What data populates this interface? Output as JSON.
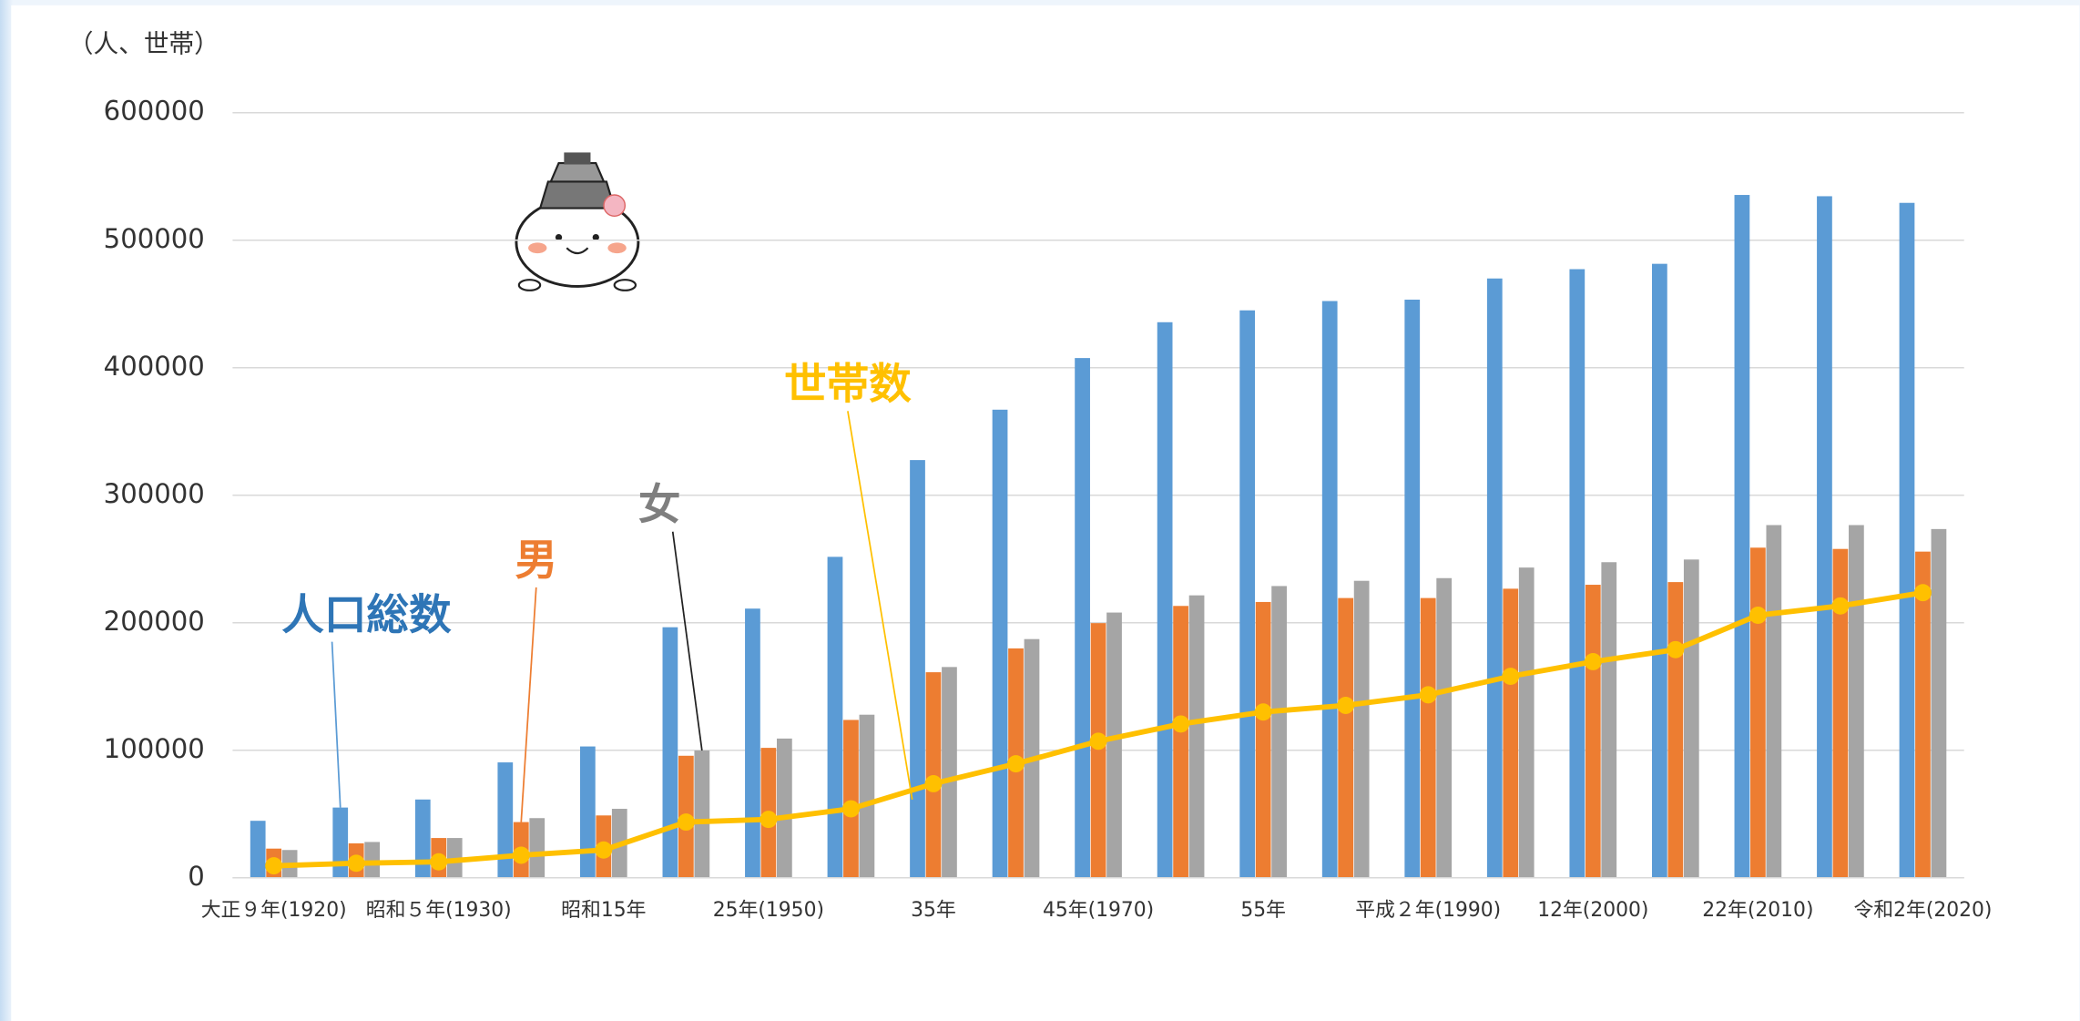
{
  "chart_data": {
    "type": "bar",
    "y_label": "（人、世帯）",
    "categories": [
      "大正９年(1920)",
      null,
      "昭和５年(1930)",
      null,
      "昭和15年",
      null,
      "25年(1950)",
      null,
      "35年",
      null,
      "45年(1970)",
      null,
      "55年",
      null,
      "平成２年(1990)",
      null,
      "12年(2000)",
      null,
      "22年(2010)",
      null,
      "令和2年(2020)"
    ],
    "series": [
      {
        "name": "人口総数",
        "type": "bar",
        "color": "#5b9bd5",
        "values": [
          44700,
          55100,
          61400,
          90500,
          103000,
          196500,
          211100,
          251700,
          327600,
          367100,
          407600,
          435700,
          445000,
          452300,
          453400,
          470000,
          477300,
          481500,
          535500,
          534500,
          529300
        ]
      },
      {
        "name": "男",
        "type": "bar",
        "color": "#ed7d31",
        "values": [
          22900,
          27000,
          31200,
          43700,
          48900,
          95700,
          101900,
          123800,
          161200,
          179900,
          199700,
          213200,
          216300,
          219400,
          219400,
          226700,
          229800,
          231900,
          258900,
          257900,
          255800
        ]
      },
      {
        "name": "女",
        "type": "bar",
        "color": "#a5a5a5",
        "values": [
          21800,
          28100,
          31200,
          46800,
          54100,
          99800,
          109200,
          127900,
          165300,
          187200,
          208000,
          221500,
          228800,
          232900,
          235000,
          243300,
          247500,
          249600,
          276600,
          276600,
          273500
        ]
      },
      {
        "name": "世帯数",
        "type": "line",
        "color": "#ffc000",
        "values": [
          9400,
          11400,
          12500,
          17700,
          21800,
          43700,
          45800,
          54100,
          73800,
          89400,
          107100,
          120600,
          130000,
          135200,
          143500,
          158000,
          169500,
          178900,
          205900,
          213200,
          223600
        ]
      }
    ],
    "ylim": [
      0,
      600000
    ],
    "yticks": [
      0,
      100000,
      200000,
      300000,
      400000,
      500000,
      600000
    ],
    "grid": true
  }
}
